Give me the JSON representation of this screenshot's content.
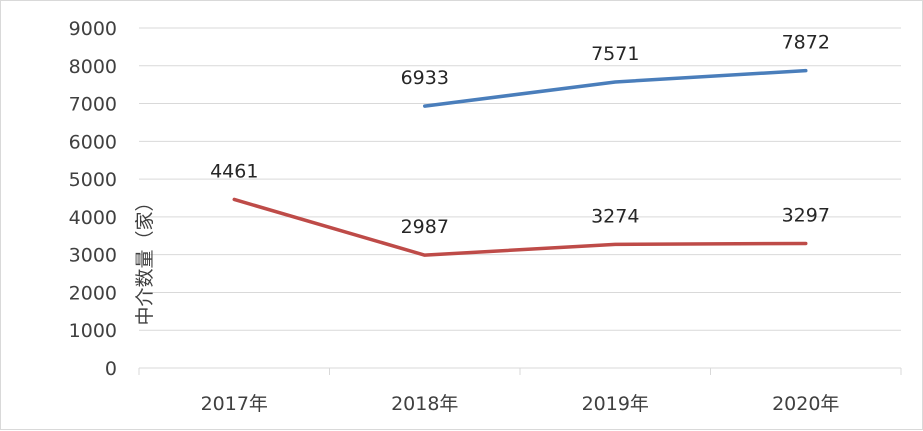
{
  "chart_data": {
    "type": "line",
    "categories": [
      "2017年",
      "2018年",
      "2019年",
      "2020年"
    ],
    "series": [
      {
        "values": [
          null,
          6933,
          7571,
          7872
        ],
        "color": "#4a7ebb"
      },
      {
        "values": [
          4461,
          2987,
          3274,
          3297
        ],
        "color": "#be4b48"
      }
    ],
    "ylabel": "中介数量（家）",
    "ylim": [
      0,
      9000
    ],
    "yticks": [
      0,
      1000,
      2000,
      3000,
      4000,
      5000,
      6000,
      7000,
      8000,
      9000
    ],
    "grid": true,
    "legend": "none"
  }
}
